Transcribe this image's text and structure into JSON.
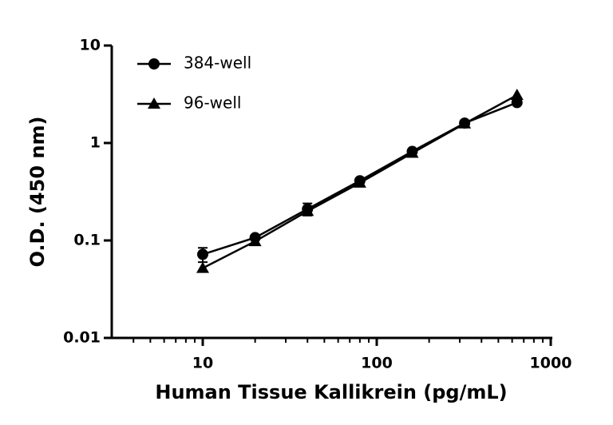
{
  "chart_data": {
    "type": "line",
    "xlabel": "Human Tissue Kallikrein (pg/mL)",
    "ylabel": "O.D. (450 nm)",
    "x": [
      10,
      20,
      40,
      80,
      160,
      320,
      640
    ],
    "series": [
      {
        "name": "384-well",
        "color": "#000000",
        "marker": "circle",
        "values": [
          0.072,
          0.107,
          0.21,
          0.41,
          0.82,
          1.6,
          2.6
        ],
        "errors": [
          0.012,
          0.005,
          0.03,
          0.02,
          0.03,
          0.06,
          0.1
        ]
      },
      {
        "name": "96-well",
        "color": "#000000",
        "marker": "triangle",
        "values": [
          0.052,
          0.098,
          0.2,
          0.39,
          0.79,
          1.58,
          3.1
        ]
      }
    ],
    "xscale": "log",
    "yscale": "log",
    "xlim": [
      3,
      1000
    ],
    "ylim": [
      0.01,
      10
    ],
    "xticks": [
      10,
      100,
      1000
    ],
    "xminorticks": [
      4,
      5,
      6,
      7,
      8,
      9,
      20,
      30,
      40,
      50,
      60,
      70,
      80,
      90,
      200,
      300,
      400,
      500,
      600,
      700,
      800,
      900
    ],
    "yticks": [
      0.01,
      0.1,
      1,
      10
    ],
    "legend": "upper left"
  }
}
